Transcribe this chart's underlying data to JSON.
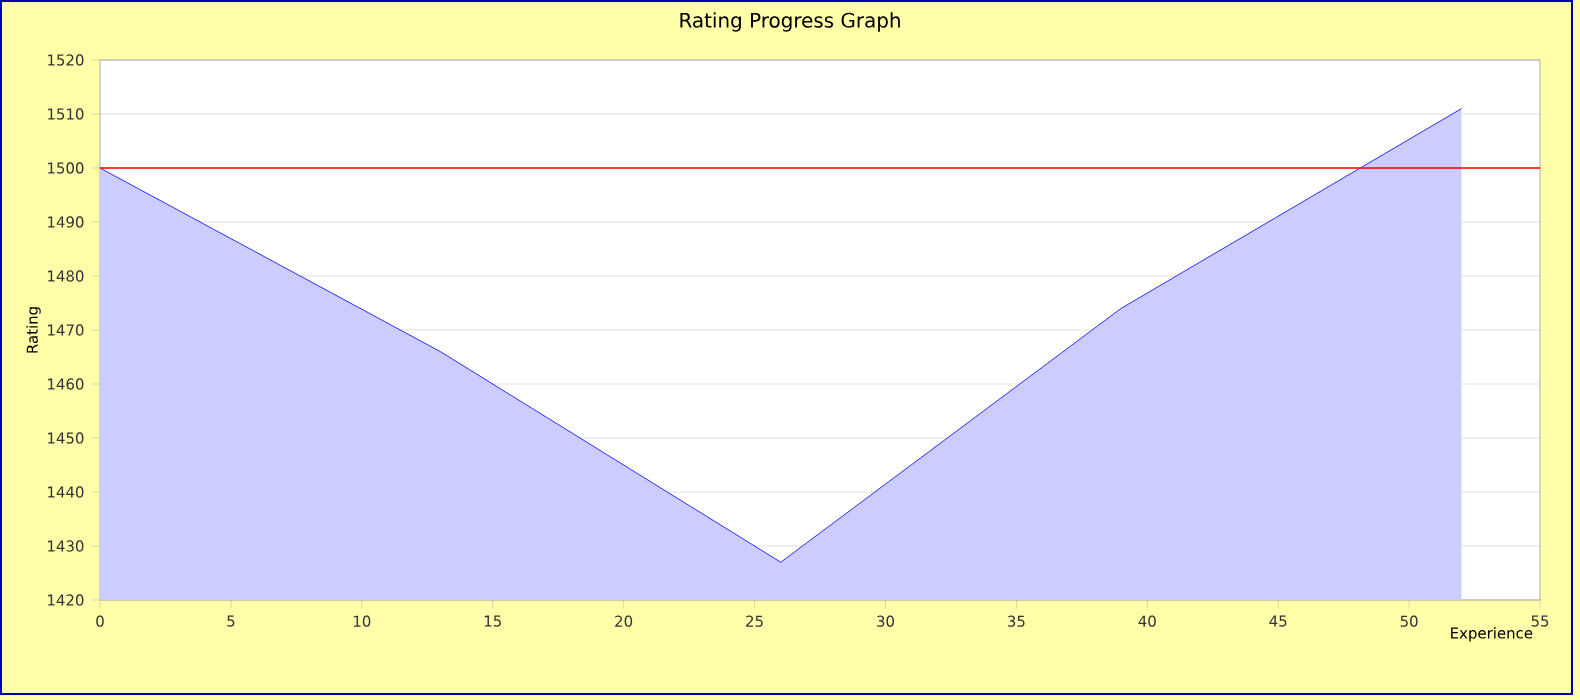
{
  "chart_data": {
    "type": "area",
    "title": "Rating Progress Graph",
    "xlabel": "Experience",
    "ylabel": "Rating",
    "x": [
      0,
      13,
      26,
      39,
      52
    ],
    "series": [
      {
        "color": "#0000ff",
        "values": [
          1500,
          1466,
          1427,
          1474,
          1511
        ]
      }
    ],
    "xlim": [
      0,
      55
    ],
    "ylim": [
      1420,
      1520
    ],
    "xticks": [
      0,
      5,
      10,
      15,
      20,
      25,
      30,
      35,
      40,
      45,
      50,
      55
    ],
    "yticks": [
      1420,
      1430,
      1440,
      1450,
      1460,
      1470,
      1480,
      1490,
      1500,
      1510,
      1520
    ],
    "ref_lines": [
      {
        "axis": "y",
        "value": 1500,
        "color": "#ff0000"
      }
    ],
    "grid": "y"
  }
}
